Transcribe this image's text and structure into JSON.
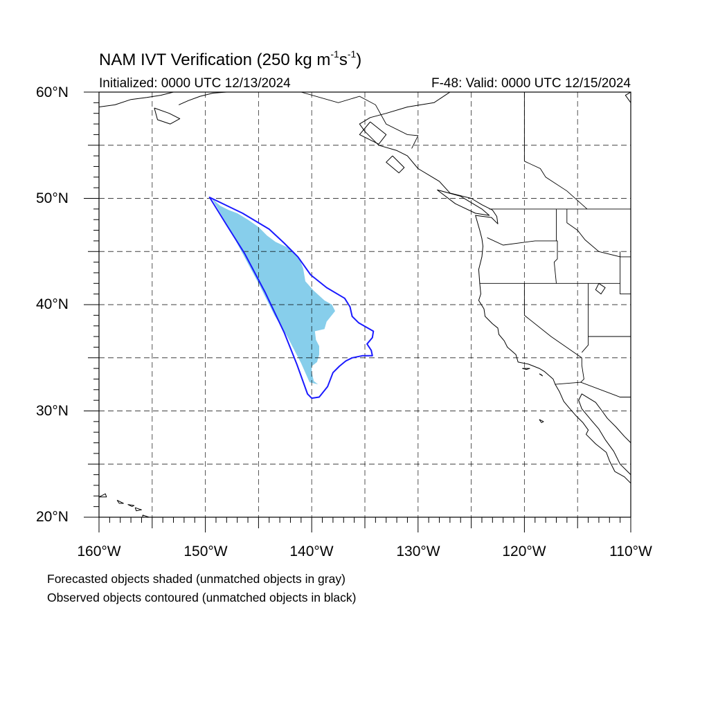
{
  "title": {
    "main": "NAM IVT Verification (250 kg m",
    "exp1": "-1",
    "mid": "s",
    "exp2": "-1",
    "end": ")"
  },
  "init_label": "Initialized: 0000 UTC 12/13/2024",
  "valid_label": "F-48: Valid: 0000 UTC 12/15/2024",
  "lat_labels": [
    "60°N",
    "50°N",
    "40°N",
    "30°N",
    "20°N"
  ],
  "lon_labels": [
    "160°W",
    "150°W",
    "140°W",
    "130°W",
    "120°W",
    "110°W"
  ],
  "notes": [
    "Forecasted objects shaded (unmatched objects in gray)",
    "Observed objects contoured (unmatched objects in black)"
  ],
  "map_extent": {
    "lon_min": -160,
    "lon_max": -110,
    "lat_min": 20,
    "lat_max": 60
  },
  "colors": {
    "forecast_fill": "#87ceeb",
    "observed_contour": "#1a1aff",
    "coastline": "#000000",
    "grid": "#000000"
  },
  "forecast_object": [
    [
      -149.4,
      50.0
    ],
    [
      -148.6,
      49.3
    ],
    [
      -147.8,
      48.9
    ],
    [
      -147.0,
      48.6
    ],
    [
      -146.0,
      48.0
    ],
    [
      -145.0,
      47.3
    ],
    [
      -144.2,
      46.5
    ],
    [
      -143.4,
      45.9
    ],
    [
      -142.3,
      45.4
    ],
    [
      -141.6,
      44.9
    ],
    [
      -141.1,
      44.2
    ],
    [
      -140.8,
      43.4
    ],
    [
      -140.6,
      42.2
    ],
    [
      -139.8,
      41.3
    ],
    [
      -138.8,
      40.4
    ],
    [
      -138.1,
      40.0
    ],
    [
      -137.8,
      39.4
    ],
    [
      -138.6,
      38.4
    ],
    [
      -138.8,
      37.7
    ],
    [
      -139.7,
      37.5
    ],
    [
      -139.6,
      36.7
    ],
    [
      -139.3,
      36.1
    ],
    [
      -139.3,
      35.3
    ],
    [
      -139.5,
      34.6
    ],
    [
      -140.0,
      34.2
    ],
    [
      -140.0,
      33.6
    ],
    [
      -139.8,
      32.8
    ],
    [
      -139.4,
      32.5
    ],
    [
      -140.2,
      32.7
    ],
    [
      -141.0,
      34.5
    ],
    [
      -142.3,
      37.0
    ],
    [
      -143.5,
      39.0
    ],
    [
      -145.0,
      42.0
    ],
    [
      -146.5,
      44.8
    ],
    [
      -148.0,
      47.6
    ],
    [
      -149.4,
      50.0
    ]
  ],
  "observed_contour": [
    [
      -149.6,
      50.1
    ],
    [
      -146.5,
      48.6
    ],
    [
      -144.0,
      47.1
    ],
    [
      -142.6,
      45.8
    ],
    [
      -141.3,
      44.5
    ],
    [
      -140.1,
      42.8
    ],
    [
      -138.6,
      41.6
    ],
    [
      -136.9,
      40.6
    ],
    [
      -136.4,
      39.8
    ],
    [
      -136.2,
      38.9
    ],
    [
      -135.6,
      38.3
    ],
    [
      -134.2,
      37.5
    ],
    [
      -134.3,
      36.9
    ],
    [
      -134.8,
      36.3
    ],
    [
      -134.4,
      35.7
    ],
    [
      -134.3,
      35.2
    ],
    [
      -135.2,
      35.2
    ],
    [
      -136.2,
      35.0
    ],
    [
      -136.8,
      34.7
    ],
    [
      -137.4,
      34.2
    ],
    [
      -138.0,
      33.6
    ],
    [
      -138.5,
      32.3
    ],
    [
      -139.3,
      31.3
    ],
    [
      -140.0,
      31.2
    ],
    [
      -140.4,
      31.6
    ],
    [
      -141.4,
      34.4
    ],
    [
      -142.6,
      37.4
    ],
    [
      -144.4,
      41.2
    ],
    [
      -146.3,
      44.8
    ],
    [
      -148.0,
      47.5
    ],
    [
      -149.6,
      50.1
    ]
  ],
  "coastlines": [
    [
      [
        -127.0,
        60.0
      ],
      [
        -128.5,
        59.0
      ],
      [
        -131.0,
        58.6
      ],
      [
        -133.0,
        58.0
      ],
      [
        -134.5,
        57.6
      ],
      [
        -135.5,
        57.0
      ],
      [
        -135.0,
        56.3
      ],
      [
        -133.7,
        55.0
      ],
      [
        -132.0,
        54.5
      ],
      [
        -131.0,
        54.0
      ],
      [
        -130.0,
        52.8
      ],
      [
        -128.0,
        51.6
      ],
      [
        -127.0,
        50.5
      ],
      [
        -125.0,
        50.0
      ],
      [
        -124.0,
        49.4
      ],
      [
        -123.0,
        48.9
      ],
      [
        -122.6,
        48.3
      ],
      [
        -122.5,
        47.6
      ],
      [
        -123.1,
        48.2
      ],
      [
        -124.6,
        48.4
      ],
      [
        -124.2,
        47.0
      ],
      [
        -124.0,
        46.2
      ],
      [
        -123.9,
        45.5
      ],
      [
        -124.0,
        44.5
      ],
      [
        -124.3,
        43.3
      ],
      [
        -124.2,
        42.0
      ],
      [
        -124.1,
        41.0
      ],
      [
        -124.3,
        40.4
      ],
      [
        -123.8,
        39.6
      ],
      [
        -123.7,
        38.9
      ],
      [
        -123.0,
        38.2
      ],
      [
        -122.5,
        37.8
      ],
      [
        -122.4,
        37.2
      ],
      [
        -121.9,
        36.6
      ],
      [
        -121.6,
        36.0
      ],
      [
        -120.8,
        35.3
      ],
      [
        -120.6,
        34.6
      ],
      [
        -119.6,
        34.4
      ],
      [
        -118.6,
        34.0
      ],
      [
        -118.1,
        33.7
      ],
      [
        -117.3,
        33.0
      ],
      [
        -117.1,
        32.5
      ],
      [
        -116.7,
        31.8
      ],
      [
        -116.3,
        30.9
      ],
      [
        -115.8,
        30.3
      ],
      [
        -115.2,
        29.6
      ],
      [
        -114.5,
        28.9
      ],
      [
        -114.0,
        28.2
      ],
      [
        -114.2,
        27.8
      ],
      [
        -113.3,
        26.9
      ],
      [
        -112.3,
        26.1
      ],
      [
        -112.0,
        25.3
      ],
      [
        -111.5,
        24.3
      ],
      [
        -110.6,
        23.8
      ],
      [
        -110.0,
        23.2
      ]
    ],
    [
      [
        -110.0,
        27.0
      ],
      [
        -110.6,
        27.6
      ],
      [
        -111.4,
        28.5
      ],
      [
        -112.2,
        29.3
      ],
      [
        -112.7,
        30.0
      ],
      [
        -113.3,
        30.8
      ],
      [
        -114.6,
        31.6
      ],
      [
        -114.9,
        31.0
      ],
      [
        -114.6,
        30.2
      ],
      [
        -113.6,
        29.0
      ],
      [
        -113.0,
        28.3
      ],
      [
        -112.4,
        27.3
      ],
      [
        -111.6,
        26.2
      ],
      [
        -111.0,
        25.0
      ],
      [
        -110.0,
        24.0
      ]
    ],
    [
      [
        -160.0,
        58.6
      ],
      [
        -158.5,
        58.8
      ],
      [
        -157.0,
        59.3
      ],
      [
        -155.5,
        59.5
      ],
      [
        -154.2,
        59.7
      ],
      [
        -153.0,
        60.0
      ]
    ],
    [
      [
        -154.8,
        58.5
      ],
      [
        -153.4,
        58.0
      ],
      [
        -152.4,
        57.5
      ],
      [
        -153.3,
        57.0
      ],
      [
        -154.5,
        57.4
      ],
      [
        -154.8,
        58.5
      ]
    ],
    [
      [
        -152.5,
        58.8
      ],
      [
        -151.6,
        59.2
      ],
      [
        -150.5,
        59.6
      ],
      [
        -149.3,
        59.9
      ],
      [
        -148.0,
        60.0
      ]
    ],
    [
      [
        -134.5,
        57.2
      ],
      [
        -135.5,
        56.0
      ],
      [
        -133.7,
        55.1
      ],
      [
        -133.0,
        56.0
      ],
      [
        -134.5,
        57.2
      ]
    ],
    [
      [
        -132.4,
        54.0
      ],
      [
        -133.0,
        53.4
      ],
      [
        -131.8,
        52.4
      ],
      [
        -131.3,
        52.9
      ],
      [
        -132.4,
        54.0
      ]
    ],
    [
      [
        -128.2,
        50.8
      ],
      [
        -126.0,
        50.2
      ],
      [
        -124.0,
        49.0
      ],
      [
        -123.3,
        48.4
      ],
      [
        -124.6,
        48.6
      ],
      [
        -126.5,
        49.5
      ],
      [
        -128.2,
        50.8
      ]
    ],
    [
      [
        -160.0,
        21.9
      ],
      [
        -159.4,
        22.2
      ],
      [
        -159.3,
        21.9
      ],
      [
        -160.0,
        21.9
      ]
    ],
    [
      [
        -158.3,
        21.6
      ],
      [
        -157.7,
        21.3
      ],
      [
        -158.1,
        21.3
      ],
      [
        -158.3,
        21.6
      ]
    ],
    [
      [
        -157.3,
        21.2
      ],
      [
        -156.7,
        21.1
      ],
      [
        -156.9,
        21.0
      ],
      [
        -157.3,
        21.2
      ]
    ],
    [
      [
        -156.6,
        20.9
      ],
      [
        -156.0,
        20.7
      ],
      [
        -156.5,
        20.6
      ],
      [
        -156.6,
        20.9
      ]
    ],
    [
      [
        -155.9,
        20.2
      ],
      [
        -155.0,
        19.9
      ],
      [
        -155.0,
        19.3
      ],
      [
        -155.8,
        19.0
      ],
      [
        -155.9,
        20.2
      ]
    ],
    [
      [
        -120.2,
        34.0
      ],
      [
        -119.5,
        34.0
      ],
      [
        -119.8,
        33.9
      ],
      [
        -120.2,
        34.0
      ]
    ],
    [
      [
        -118.6,
        33.5
      ],
      [
        -118.3,
        33.3
      ],
      [
        -118.4,
        33.4
      ],
      [
        -118.6,
        33.5
      ]
    ],
    [
      [
        -118.6,
        29.2
      ],
      [
        -118.2,
        29.0
      ],
      [
        -118.4,
        28.9
      ],
      [
        -118.6,
        29.2
      ]
    ],
    [
      [
        -113.0,
        42.0
      ],
      [
        -112.4,
        41.6
      ],
      [
        -112.8,
        41.0
      ],
      [
        -113.3,
        41.4
      ],
      [
        -113.0,
        42.0
      ]
    ],
    [
      [
        -110.0,
        59.0
      ],
      [
        -110.5,
        59.7
      ],
      [
        -110.0,
        60.0
      ]
    ]
  ],
  "borders": [
    [
      [
        -141.0,
        60.0
      ],
      [
        -141.0,
        60.0
      ],
      [
        -137.5,
        59.0
      ],
      [
        -135.5,
        59.6
      ],
      [
        -134.0,
        58.8
      ],
      [
        -133.0,
        57.0
      ],
      [
        -131.0,
        56.0
      ],
      [
        -130.0,
        55.9
      ],
      [
        -130.6,
        54.7
      ]
    ],
    [
      [
        -123.3,
        49.0
      ],
      [
        -110.0,
        49.0
      ]
    ],
    [
      [
        -120.0,
        60.0
      ],
      [
        -120.0,
        53.5
      ],
      [
        -118.5,
        52.8
      ],
      [
        -118.0,
        52.0
      ],
      [
        -116.0,
        50.7
      ],
      [
        -114.1,
        49.0
      ]
    ],
    [
      [
        -123.5,
        46.3
      ],
      [
        -122.0,
        45.6
      ],
      [
        -119.0,
        46.0
      ],
      [
        -116.9,
        46.0
      ],
      [
        -116.9,
        44.3
      ],
      [
        -117.2,
        44.0
      ],
      [
        -117.0,
        42.0
      ]
    ],
    [
      [
        -124.2,
        42.0
      ],
      [
        -117.0,
        42.0
      ],
      [
        -111.0,
        42.0
      ]
    ],
    [
      [
        -117.0,
        49.0
      ],
      [
        -117.0,
        46.0
      ]
    ],
    [
      [
        -116.0,
        49.0
      ],
      [
        -116.0,
        47.7
      ],
      [
        -115.0,
        47.0
      ],
      [
        -114.3,
        46.1
      ],
      [
        -113.0,
        45.0
      ],
      [
        -111.0,
        44.5
      ],
      [
        -110.0,
        44.5
      ]
    ],
    [
      [
        -111.0,
        45.0
      ],
      [
        -111.0,
        41.0
      ],
      [
        -110.0,
        41.0
      ]
    ],
    [
      [
        -114.0,
        42.0
      ],
      [
        -114.0,
        37.0
      ],
      [
        -110.0,
        37.0
      ]
    ],
    [
      [
        -120.0,
        42.0
      ],
      [
        -120.0,
        39.0
      ],
      [
        -117.5,
        37.0
      ],
      [
        -114.6,
        35.0
      ]
    ],
    [
      [
        -114.6,
        35.0
      ],
      [
        -114.6,
        34.3
      ],
      [
        -114.4,
        33.0
      ],
      [
        -114.7,
        32.7
      ]
    ],
    [
      [
        -117.1,
        32.5
      ],
      [
        -114.7,
        32.7
      ],
      [
        -111.0,
        31.3
      ],
      [
        -110.0,
        31.3
      ]
    ],
    [
      [
        -114.0,
        37.0
      ],
      [
        -114.0,
        36.2
      ],
      [
        -114.6,
        35.5
      ]
    ]
  ]
}
